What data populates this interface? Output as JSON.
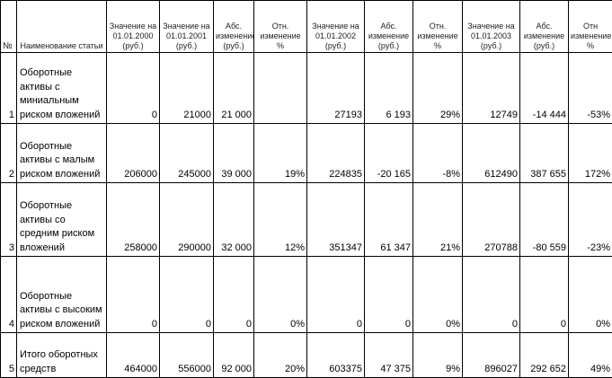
{
  "table": {
    "headers": [
      "№",
      "Наименование статьи",
      "Значение на 01.01.2000 (руб.)",
      "Значение на 01.01.2001 (руб.)",
      "Абс. изменение (руб.)",
      "Отн. изменение %",
      "Значение на 01.01.2002 (руб.)",
      "Абс. изменение (руб.)",
      "Отн. изменение %",
      "Значение на 01.01.2003 (руб.)",
      "Абс. изменение (руб.)",
      "Отн изменение %"
    ],
    "rows": [
      [
        "1",
        "Оборотные активы с миниальным риском вложений",
        "0",
        "21000",
        "21 000",
        null,
        "27193",
        "6 193",
        "29%",
        "12749",
        "-14 444",
        "-53%"
      ],
      [
        "2",
        "Оборотные активы с малым риском вложений",
        "206000",
        "245000",
        "39 000",
        "19%",
        "224835",
        "-20 165",
        "-8%",
        "612490",
        "387 655",
        "172%"
      ],
      [
        "3",
        "Оборотные активы со средним риском вложений",
        "258000",
        "290000",
        "32 000",
        "12%",
        "351347",
        "61 347",
        "21%",
        "270788",
        "-80 559",
        "-23%"
      ],
      [
        "4",
        "Оборотные активы с высоким риском вложений",
        "0",
        "0",
        "0",
        "0%",
        "0",
        "0",
        "0%",
        "0",
        "0",
        "0%"
      ],
      [
        "5",
        "Итого оборотных средств",
        "464000",
        "556000",
        "92 000",
        "20%",
        "603375",
        "47 375",
        "9%",
        "896027",
        "292 652",
        "49%"
      ]
    ]
  }
}
